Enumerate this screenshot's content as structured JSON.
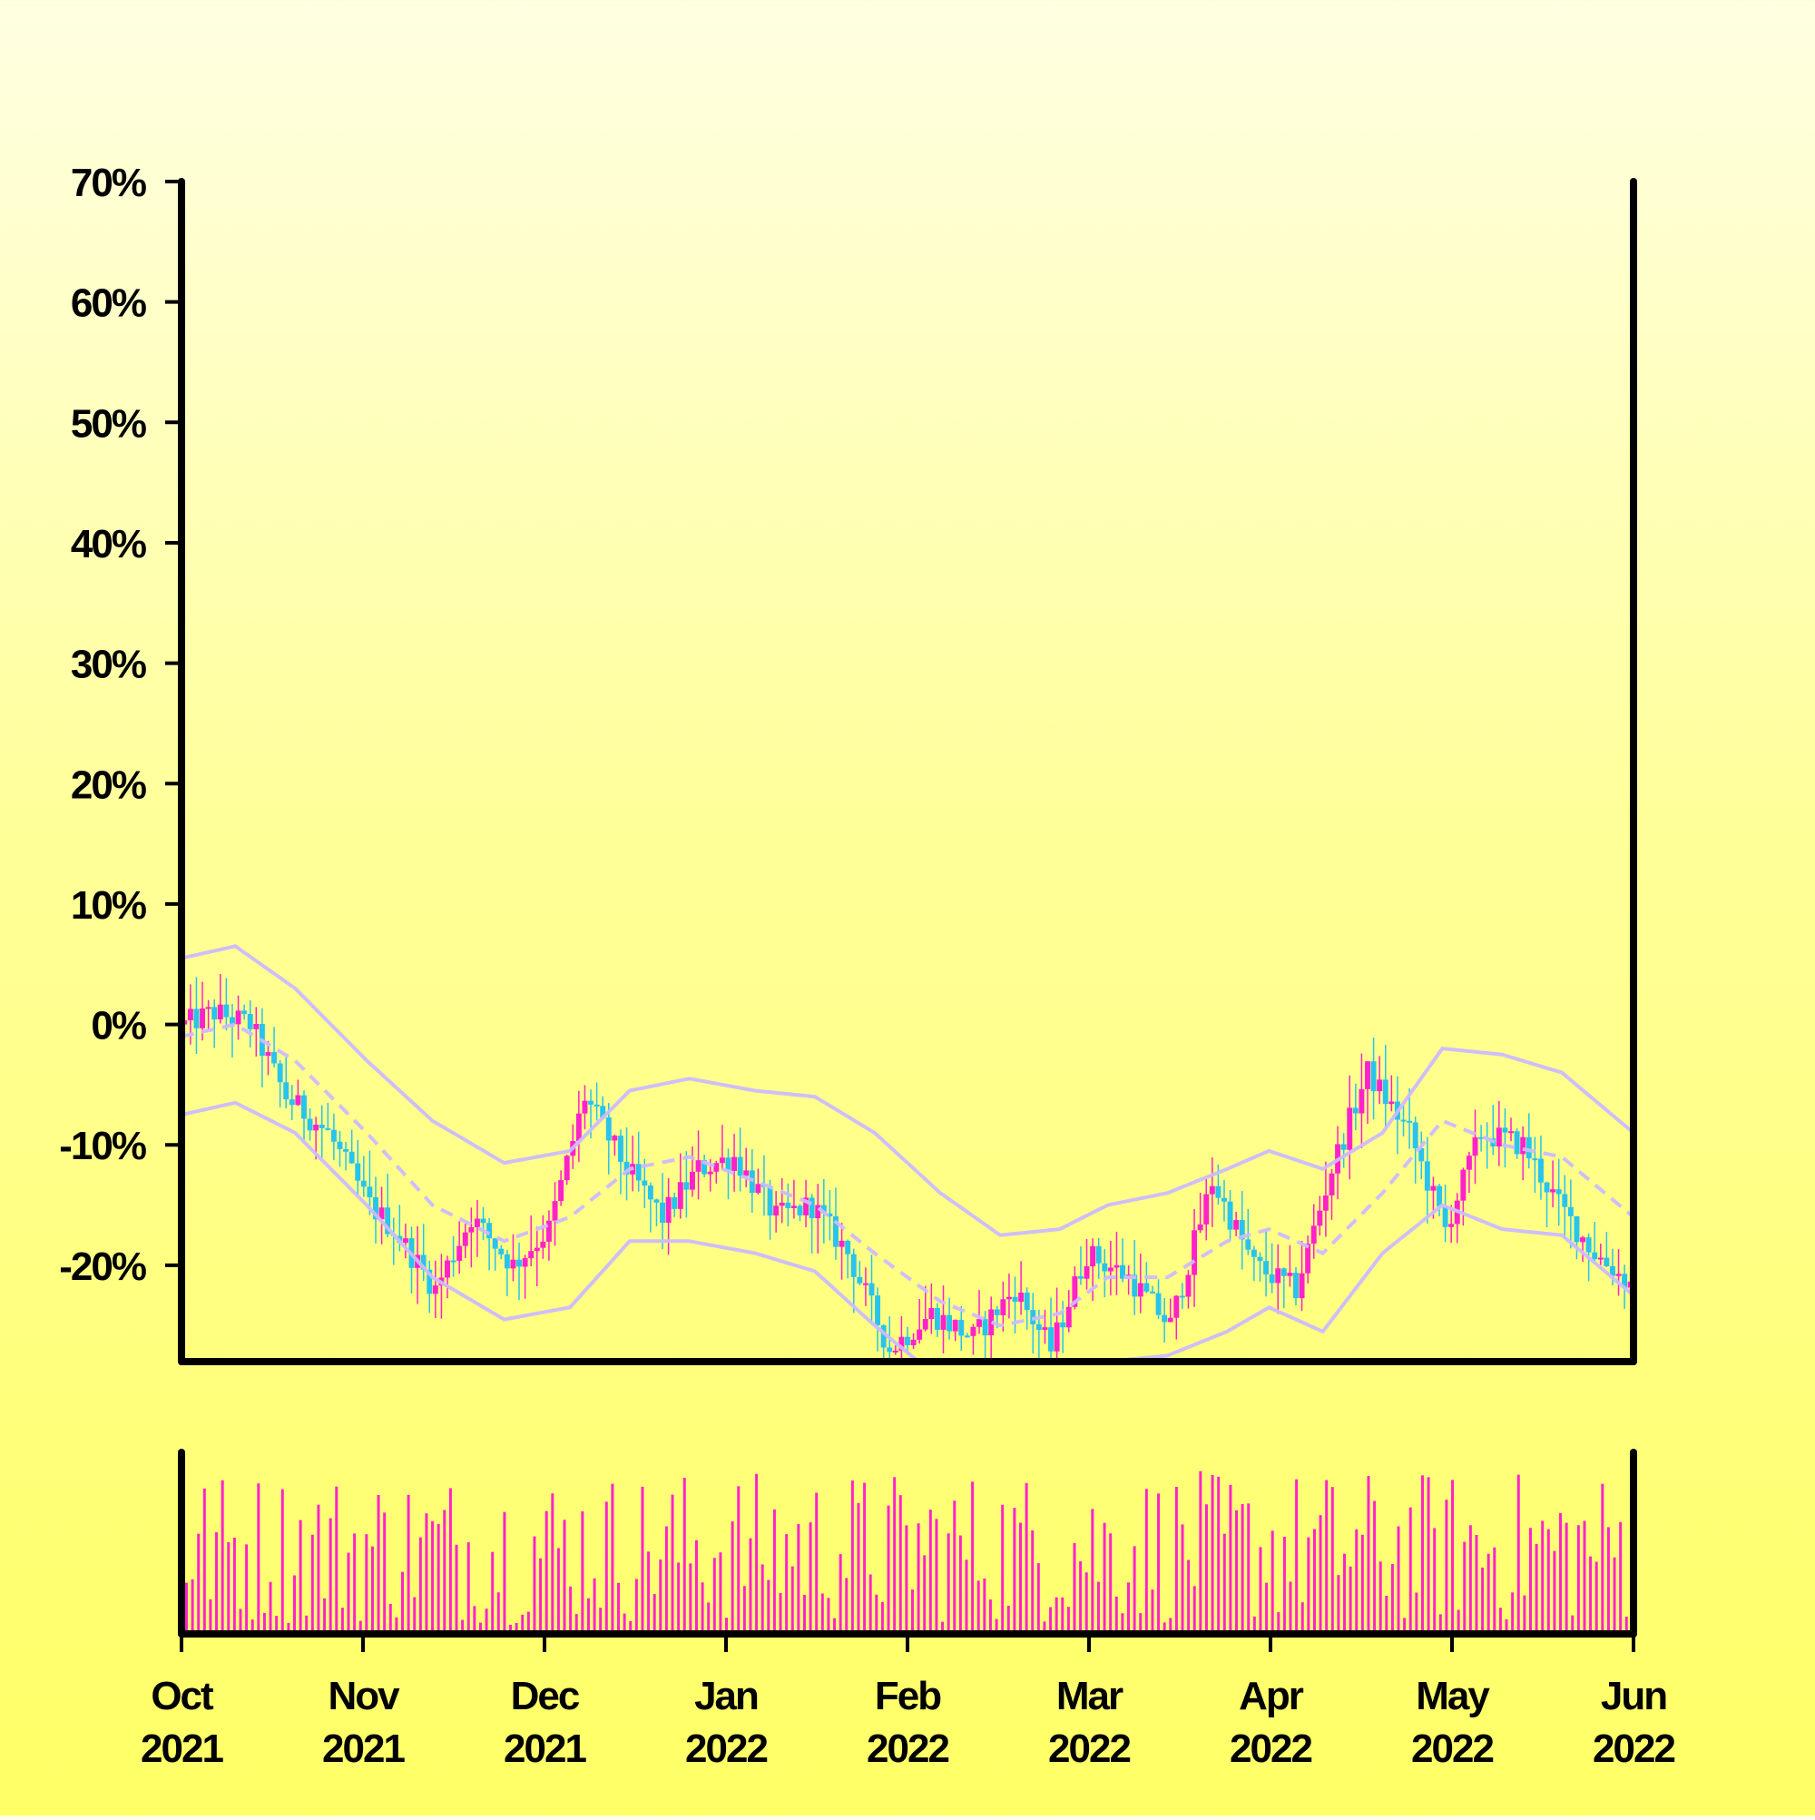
{
  "chart_data": {
    "type": "candlestick",
    "y_unit": "percent",
    "ylim": [
      -28,
      70
    ],
    "yticks": [
      "70%",
      "60%",
      "50%",
      "40%",
      "30%",
      "20%",
      "10%",
      "0%",
      "-10%",
      "-20%"
    ],
    "xticks": [
      {
        "month": "Oct",
        "year": "2021"
      },
      {
        "month": "Nov",
        "year": "2021"
      },
      {
        "month": "Dec",
        "year": "2021"
      },
      {
        "month": "Jan",
        "year": "2022"
      },
      {
        "month": "Feb",
        "year": "2022"
      },
      {
        "month": "Mar",
        "year": "2022"
      },
      {
        "month": "Apr",
        "year": "2022"
      },
      {
        "month": "May",
        "year": "2022"
      },
      {
        "month": "Jun",
        "year": "2022"
      }
    ],
    "x_range": [
      "2021-10-01",
      "2022-06-01"
    ],
    "series": [
      {
        "role": "close",
        "color": "#29c3ee",
        "points": [
          [
            "2021-10-01",
            0
          ],
          [
            "2021-10-06",
            1
          ],
          [
            "2021-10-12",
            0
          ],
          [
            "2021-10-18",
            -6
          ],
          [
            "2021-10-25",
            -9
          ],
          [
            "2021-11-01",
            -15
          ],
          [
            "2021-11-05",
            -17
          ],
          [
            "2021-11-12",
            -22
          ],
          [
            "2021-11-18",
            -16
          ],
          [
            "2021-11-25",
            -20
          ],
          [
            "2021-12-01",
            -17
          ],
          [
            "2021-12-07",
            -6
          ],
          [
            "2021-12-14",
            -12
          ],
          [
            "2021-12-20",
            -16
          ],
          [
            "2021-12-26",
            -12
          ],
          [
            "2022-01-01",
            -11
          ],
          [
            "2022-01-08",
            -16
          ],
          [
            "2022-01-14",
            -15
          ],
          [
            "2022-01-20",
            -19
          ],
          [
            "2022-01-27",
            -27
          ],
          [
            "2022-02-03",
            -24
          ],
          [
            "2022-02-10",
            -26
          ],
          [
            "2022-02-17",
            -22
          ],
          [
            "2022-02-23",
            -27
          ],
          [
            "2022-03-01",
            -19
          ],
          [
            "2022-03-08",
            -21
          ],
          [
            "2022-03-15",
            -25
          ],
          [
            "2022-03-22",
            -13
          ],
          [
            "2022-03-29",
            -20
          ],
          [
            "2022-04-05",
            -22
          ],
          [
            "2022-04-11",
            -12
          ],
          [
            "2022-04-17",
            -4
          ],
          [
            "2022-04-24",
            -9
          ],
          [
            "2022-04-30",
            -17
          ],
          [
            "2022-05-06",
            -9
          ],
          [
            "2022-05-13",
            -10
          ],
          [
            "2022-05-19",
            -15
          ],
          [
            "2022-05-25",
            -19
          ],
          [
            "2022-06-01",
            -22
          ]
        ]
      },
      {
        "role": "moving-average",
        "color": "#ccbbff",
        "points": [
          [
            "2021-10-01",
            -1
          ],
          [
            "2021-10-10",
            0
          ],
          [
            "2021-10-20",
            -3
          ],
          [
            "2021-11-01",
            -9
          ],
          [
            "2021-11-12",
            -15
          ],
          [
            "2021-11-24",
            -18
          ],
          [
            "2021-12-05",
            -16
          ],
          [
            "2021-12-15",
            -12
          ],
          [
            "2021-12-25",
            -11
          ],
          [
            "2022-01-05",
            -13
          ],
          [
            "2022-01-15",
            -15
          ],
          [
            "2022-01-25",
            -19
          ],
          [
            "2022-02-05",
            -23
          ],
          [
            "2022-02-15",
            -25
          ],
          [
            "2022-02-25",
            -24
          ],
          [
            "2022-03-05",
            -21
          ],
          [
            "2022-03-15",
            -21
          ],
          [
            "2022-03-25",
            -18
          ],
          [
            "2022-04-01",
            -17
          ],
          [
            "2022-04-10",
            -19
          ],
          [
            "2022-04-20",
            -14
          ],
          [
            "2022-04-30",
            -8
          ],
          [
            "2022-05-10",
            -10
          ],
          [
            "2022-05-20",
            -11
          ],
          [
            "2022-06-01",
            -16
          ]
        ]
      },
      {
        "role": "upper-band",
        "color": "#ccbbff",
        "points": [
          [
            "2021-10-01",
            5.5
          ],
          [
            "2021-10-10",
            6.5
          ],
          [
            "2021-10-20",
            3
          ],
          [
            "2021-11-01",
            -3
          ],
          [
            "2021-11-12",
            -8
          ],
          [
            "2021-11-24",
            -11.5
          ],
          [
            "2021-12-05",
            -10.5
          ],
          [
            "2021-12-15",
            -5.5
          ],
          [
            "2021-12-25",
            -4.5
          ],
          [
            "2022-01-05",
            -5.5
          ],
          [
            "2022-01-15",
            -6
          ],
          [
            "2022-01-25",
            -9
          ],
          [
            "2022-02-05",
            -14
          ],
          [
            "2022-02-15",
            -17.5
          ],
          [
            "2022-02-25",
            -17
          ],
          [
            "2022-03-05",
            -15
          ],
          [
            "2022-03-15",
            -14
          ],
          [
            "2022-03-25",
            -12
          ],
          [
            "2022-04-01",
            -10.5
          ],
          [
            "2022-04-10",
            -12
          ],
          [
            "2022-04-20",
            -9
          ],
          [
            "2022-04-30",
            -2
          ],
          [
            "2022-05-10",
            -2.5
          ],
          [
            "2022-05-20",
            -4
          ],
          [
            "2022-06-01",
            -9
          ]
        ]
      },
      {
        "role": "lower-band",
        "color": "#ccbbff",
        "points": [
          [
            "2021-10-01",
            -7.5
          ],
          [
            "2021-10-10",
            -6.5
          ],
          [
            "2021-10-20",
            -9
          ],
          [
            "2021-11-01",
            -15
          ],
          [
            "2021-11-12",
            -21
          ],
          [
            "2021-11-24",
            -24.5
          ],
          [
            "2021-12-05",
            -23.5
          ],
          [
            "2021-12-15",
            -18
          ],
          [
            "2021-12-25",
            -18
          ],
          [
            "2022-01-05",
            -19
          ],
          [
            "2022-01-15",
            -20.5
          ],
          [
            "2022-01-25",
            -25
          ],
          [
            "2022-02-05",
            -29.5
          ],
          [
            "2022-02-15",
            -32
          ],
          [
            "2022-02-25",
            -31
          ],
          [
            "2022-03-05",
            -28
          ],
          [
            "2022-03-15",
            -27.5
          ],
          [
            "2022-03-25",
            -25.5
          ],
          [
            "2022-04-01",
            -23.5
          ],
          [
            "2022-04-10",
            -25.5
          ],
          [
            "2022-04-20",
            -19
          ],
          [
            "2022-04-30",
            -15
          ],
          [
            "2022-05-10",
            -17
          ],
          [
            "2022-05-20",
            -17.5
          ],
          [
            "2022-06-01",
            -22.5
          ]
        ]
      }
    ],
    "up_color": "#ff22cc",
    "down_color": "#29c3ee",
    "volume": {
      "color": "#ff22cc",
      "ylim": [
        0,
        100
      ],
      "bar_count": 242
    },
    "grid": false,
    "legend": "none"
  }
}
